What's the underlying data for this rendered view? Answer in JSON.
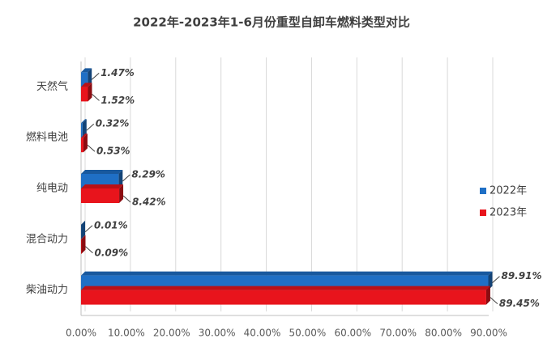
{
  "chart_data": {
    "type": "bar",
    "orientation": "horizontal",
    "title": "2022年-2023年1-6月份重型自卸车燃料类型对比",
    "categories": [
      "天然气",
      "燃料电池",
      "纯电动",
      "混合动力",
      "柴油动力"
    ],
    "series": [
      {
        "name": "2022年",
        "color": "#1f6fc5",
        "values": [
          1.47,
          0.32,
          8.29,
          0.01,
          89.91
        ],
        "value_labels": [
          "1.47%",
          "0.32%",
          "8.29%",
          "0.01%",
          "89.91%"
        ]
      },
      {
        "name": "2023年",
        "color": "#e8141c",
        "values": [
          1.52,
          0.53,
          8.42,
          0.09,
          89.45
        ],
        "value_labels": [
          "1.52%",
          "0.53%",
          "8.42%",
          "0.09%",
          "89.45%"
        ]
      }
    ],
    "xlim": [
      0,
      90
    ],
    "xticks": [
      {
        "value": 0,
        "label": "0.00%"
      },
      {
        "value": 10,
        "label": "10.00%"
      },
      {
        "value": 20,
        "label": "20.00%"
      },
      {
        "value": 30,
        "label": "30.00%"
      },
      {
        "value": 40,
        "label": "40.00%"
      },
      {
        "value": 50,
        "label": "50.00%"
      },
      {
        "value": 60,
        "label": "60.00%"
      },
      {
        "value": 70,
        "label": "70.00%"
      },
      {
        "value": 80,
        "label": "80.00%"
      },
      {
        "value": 90,
        "label": "90.00%"
      }
    ],
    "grid": true,
    "legend": "right"
  }
}
